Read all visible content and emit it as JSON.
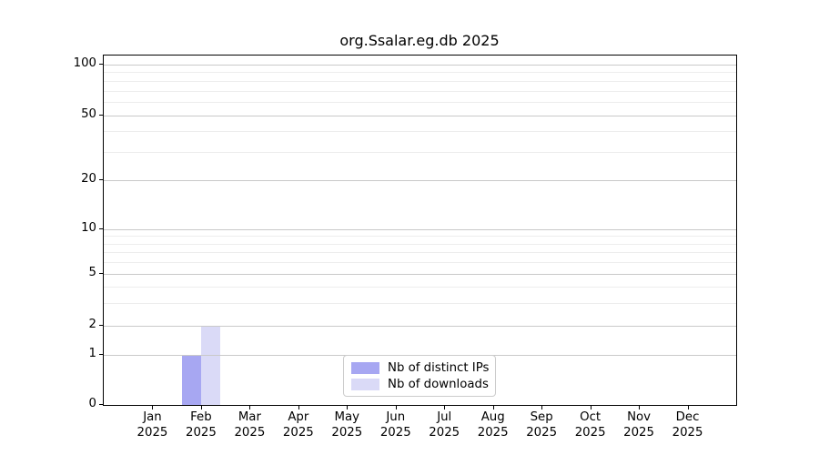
{
  "chart_data": {
    "type": "bar",
    "title": "org.Ssalar.eg.db 2025",
    "x_axis": {
      "months": [
        "Jan",
        "Feb",
        "Mar",
        "Apr",
        "May",
        "Jun",
        "Jul",
        "Aug",
        "Sep",
        "Oct",
        "Nov",
        "Dec"
      ],
      "year": "2025"
    },
    "categories": [
      "Jan 2025",
      "Feb 2025",
      "Mar 2025",
      "Apr 2025",
      "May 2025",
      "Jun 2025",
      "Jul 2025",
      "Aug 2025",
      "Sep 2025",
      "Oct 2025",
      "Nov 2025",
      "Dec 2025"
    ],
    "series": [
      {
        "name": "Nb of distinct IPs",
        "color": "#a7a7f2",
        "values": [
          0,
          1,
          0,
          0,
          0,
          0,
          0,
          0,
          0,
          0,
          0,
          0
        ]
      },
      {
        "name": "Nb of downloads",
        "color": "#dadaf7",
        "values": [
          0,
          2,
          0,
          0,
          0,
          0,
          0,
          0,
          0,
          0,
          0,
          0
        ]
      }
    ],
    "y_axis": {
      "scale": "log-like",
      "tick_labels": [
        "0",
        "1",
        "2",
        "5",
        "10",
        "20",
        "50",
        "100"
      ],
      "tick_values": [
        0,
        1,
        2,
        5,
        10,
        20,
        50,
        100
      ],
      "tick_fracs_from_top": [
        1.0,
        0.857,
        0.774,
        0.625,
        0.497,
        0.3575,
        0.171,
        0.026
      ],
      "minor_tick_values": [
        3,
        4,
        6,
        7,
        8,
        9,
        30,
        40,
        60,
        70,
        80,
        90
      ]
    },
    "legend": {
      "position": "lower center",
      "entries": [
        "Nb of distinct IPs",
        "Nb of downloads"
      ]
    },
    "grid": {
      "major_color": "#c9c9c9",
      "minor_color": "#ededed",
      "vertical": false
    },
    "spine_color": "#000000",
    "background_color": "#ffffff"
  }
}
